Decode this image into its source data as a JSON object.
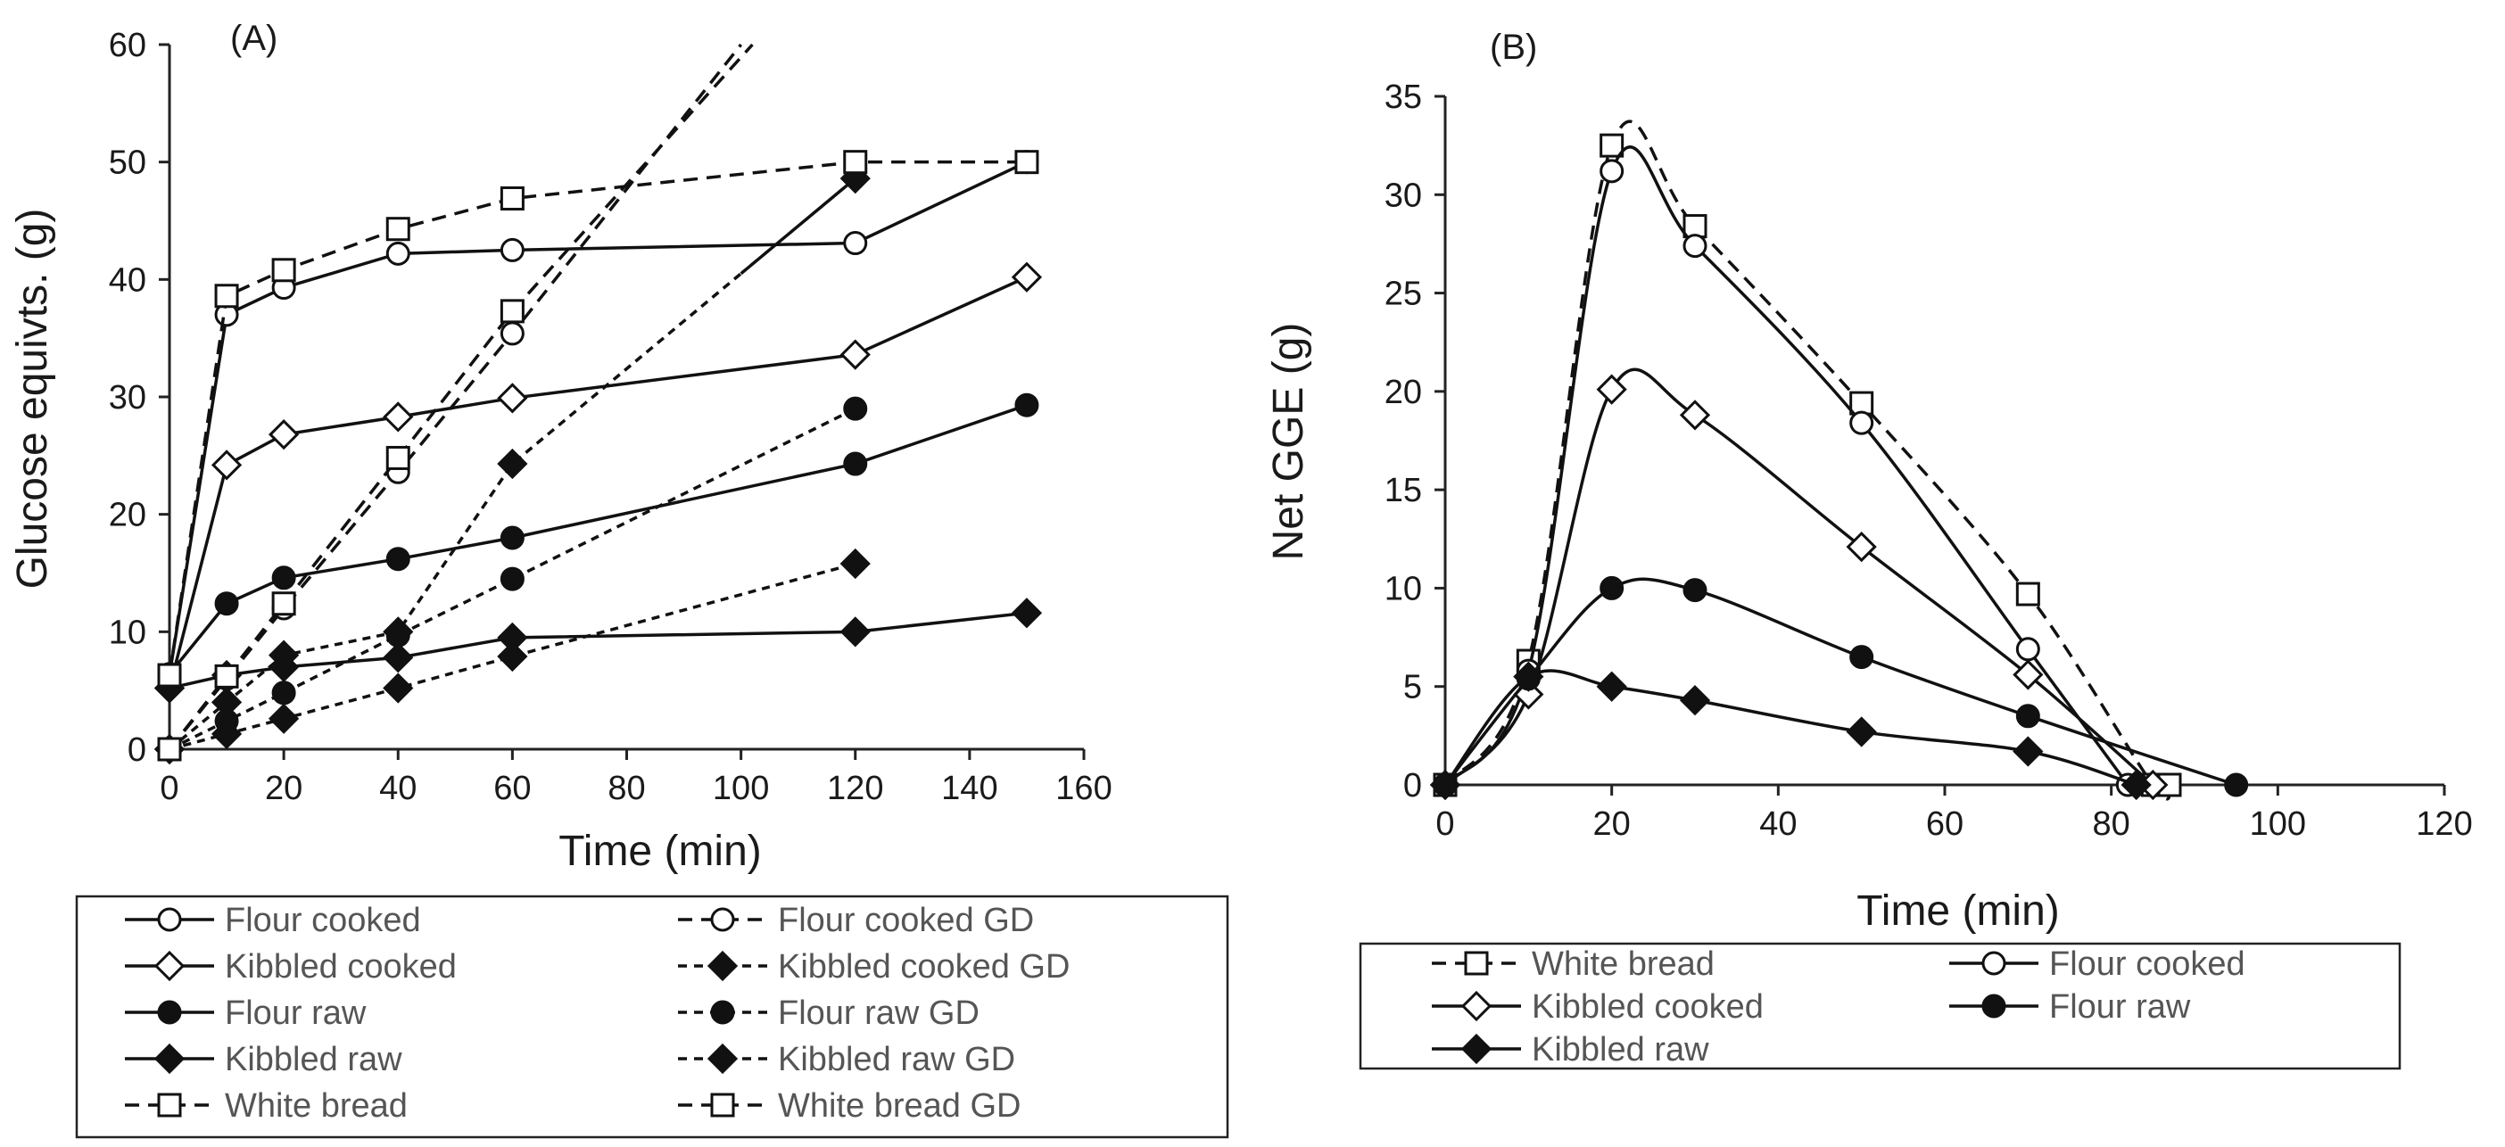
{
  "chart_data": [
    {
      "panel": "A",
      "type": "line",
      "title": "(A)",
      "xlabel": "Time (min)",
      "ylabel": "Glucose equivts. (g)",
      "xlim": [
        0,
        160
      ],
      "ylim": [
        0,
        60
      ],
      "xticks": [
        0,
        20,
        40,
        60,
        80,
        100,
        120,
        140,
        160
      ],
      "yticks": [
        0,
        10,
        20,
        30,
        40,
        50,
        60
      ],
      "grid": false,
      "legend": "below",
      "series": [
        {
          "name": "Flour cooked",
          "line": "solid",
          "marker": "circle-open",
          "x": [
            0,
            10,
            20,
            40,
            60,
            120,
            150
          ],
          "y": [
            6.3,
            37.0,
            39.3,
            42.2,
            42.5,
            43.1,
            50.0
          ]
        },
        {
          "name": "Flour cooked GD",
          "line": "dashed",
          "marker": "circle-open",
          "x": [
            0,
            10,
            20,
            40,
            60
          ],
          "y": [
            0,
            6.0,
            12.0,
            23.6,
            35.4
          ],
          "extend_to": [
            100,
            60
          ]
        },
        {
          "name": "Kibbled cooked",
          "line": "solid",
          "marker": "diamond-open",
          "x": [
            0,
            10,
            20,
            40,
            60,
            120,
            150
          ],
          "y": [
            5.2,
            24.2,
            26.8,
            28.3,
            29.9,
            33.6,
            40.2
          ]
        },
        {
          "name": "Kibbled cooked GD",
          "line": "dotted",
          "marker": "diamond-filled",
          "x": [
            0,
            10,
            20,
            40,
            60,
            120
          ],
          "y": [
            0,
            4.0,
            8.0,
            10.0,
            24.3,
            48.6
          ],
          "extend_to": [
            100,
            40.5
          ]
        },
        {
          "name": "Flour raw",
          "line": "solid",
          "marker": "circle-filled",
          "x": [
            0,
            10,
            20,
            40,
            60,
            120,
            150
          ],
          "y": [
            6.4,
            12.4,
            14.6,
            16.2,
            18.0,
            24.3,
            29.3
          ]
        },
        {
          "name": "Flour raw GD",
          "line": "dotted",
          "marker": "circle-filled",
          "x": [
            0,
            10,
            20,
            40,
            60,
            120
          ],
          "y": [
            0,
            2.4,
            4.8,
            9.7,
            14.5,
            29.0
          ]
        },
        {
          "name": "Kibbled raw",
          "line": "solid",
          "marker": "diamond-filled",
          "x": [
            0,
            10,
            20,
            40,
            60,
            120,
            150
          ],
          "y": [
            5.2,
            6.3,
            7.0,
            7.8,
            9.5,
            10.0,
            11.6
          ]
        },
        {
          "name": "Kibbled raw GD",
          "line": "dotted",
          "marker": "diamond-filled",
          "x": [
            0,
            10,
            20,
            40,
            60,
            120
          ],
          "y": [
            0,
            1.3,
            2.6,
            5.2,
            7.9,
            15.8
          ]
        },
        {
          "name": "White bread",
          "line": "dashed",
          "marker": "square-open",
          "x": [
            0,
            10,
            20,
            40,
            60,
            120,
            150
          ],
          "y": [
            6.3,
            38.6,
            40.8,
            44.3,
            46.9,
            50.0,
            50.0
          ]
        },
        {
          "name": "White bread GD",
          "line": "dashed",
          "marker": "square-open",
          "x": [
            0,
            10,
            20,
            40,
            60
          ],
          "y": [
            0,
            6.2,
            12.4,
            24.8,
            37.3
          ],
          "extend_to": [
            102,
            60
          ]
        }
      ]
    },
    {
      "panel": "B",
      "type": "line",
      "title": "(B)",
      "xlabel": "Time (min)",
      "ylabel": "Net GGE (g)",
      "xlim": [
        0,
        120
      ],
      "ylim": [
        0,
        35
      ],
      "xticks": [
        0,
        20,
        40,
        60,
        80,
        100,
        120
      ],
      "yticks": [
        0,
        5,
        10,
        15,
        20,
        25,
        30,
        35
      ],
      "grid": false,
      "legend": "below",
      "series": [
        {
          "name": "White bread",
          "line": "dashed",
          "marker": "square-open",
          "x": [
            0,
            10,
            20,
            30,
            50,
            70,
            85,
            87
          ],
          "y": [
            0,
            6.3,
            32.5,
            28.4,
            19.4,
            9.7,
            0,
            0
          ]
        },
        {
          "name": "Flour cooked",
          "line": "solid",
          "marker": "circle-open",
          "x": [
            0,
            10,
            20,
            30,
            50,
            70,
            82
          ],
          "y": [
            0,
            5.8,
            31.2,
            27.4,
            18.4,
            6.9,
            0
          ]
        },
        {
          "name": "Kibbled cooked",
          "line": "solid",
          "marker": "diamond-open",
          "x": [
            0,
            10,
            20,
            30,
            50,
            70,
            85
          ],
          "y": [
            0,
            4.6,
            20.1,
            18.8,
            12.1,
            5.6,
            0
          ]
        },
        {
          "name": "Flour raw",
          "line": "solid",
          "marker": "circle-filled",
          "x": [
            0,
            10,
            20,
            30,
            50,
            70,
            95
          ],
          "y": [
            0,
            5.4,
            10.0,
            9.9,
            6.5,
            3.5,
            0
          ]
        },
        {
          "name": "Kibbled raw",
          "line": "solid",
          "marker": "diamond-filled",
          "x": [
            0,
            10,
            20,
            30,
            50,
            70,
            83
          ],
          "y": [
            0,
            5.5,
            5.0,
            4.3,
            2.7,
            1.7,
            0
          ]
        }
      ]
    }
  ]
}
